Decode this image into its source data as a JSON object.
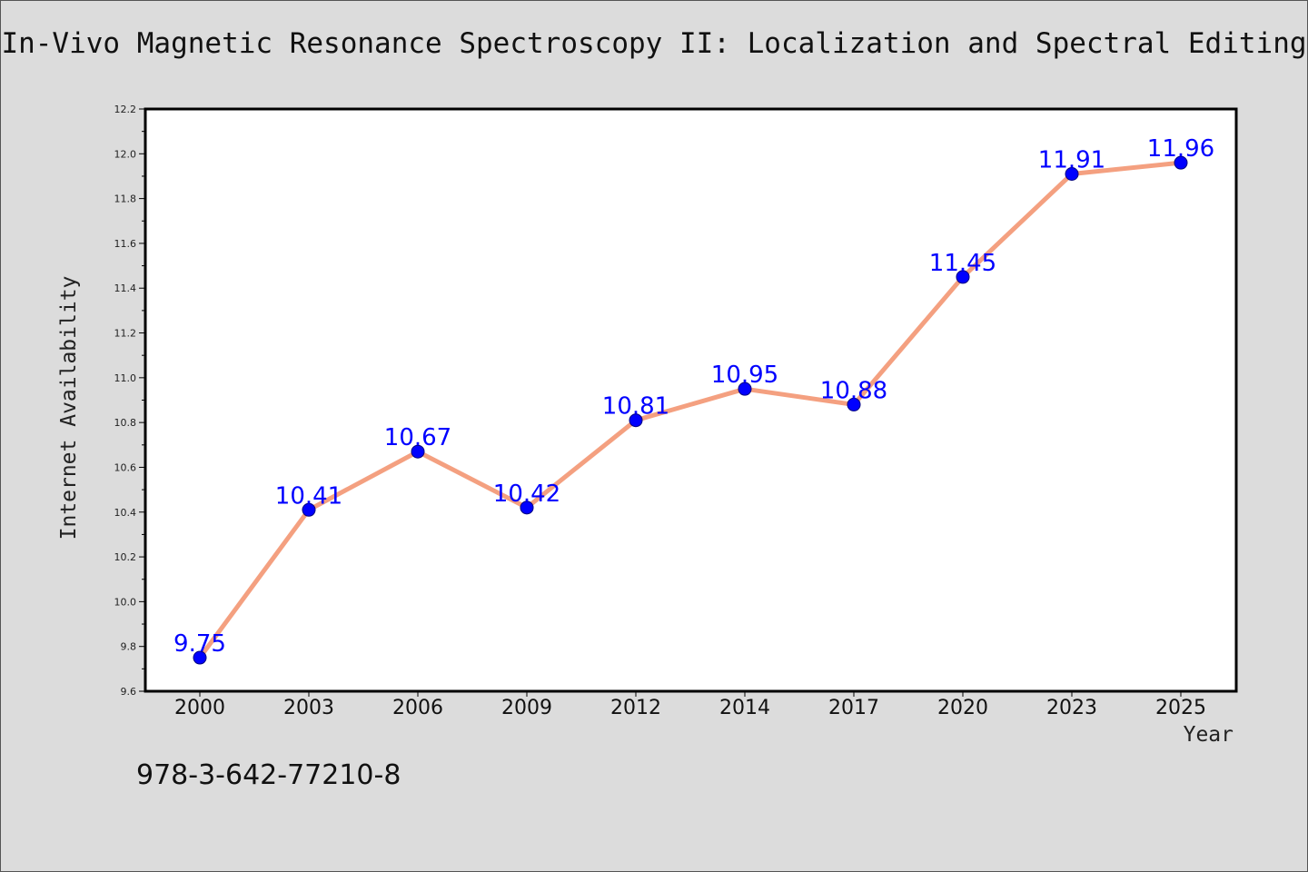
{
  "colors": {
    "line": "#f4a080",
    "marker": "#0000ff",
    "label": "#0000ff",
    "plot_bg": "#ffffff",
    "axis": "#000000"
  },
  "footer": "978-3-642-77210-8",
  "chart_data": {
    "type": "line",
    "title": "In-Vivo Magnetic Resonance Spectroscopy II: Localization and Spectral Editing",
    "xlabel": "Year",
    "ylabel": "Internet Availability",
    "categories": [
      "2000",
      "2003",
      "2006",
      "2009",
      "2012",
      "2014",
      "2017",
      "2020",
      "2023",
      "2025"
    ],
    "series": [
      {
        "values": [
          9.75,
          10.41,
          10.67,
          10.42,
          10.81,
          10.95,
          10.88,
          11.45,
          11.91,
          11.96
        ],
        "labels": [
          "9.75",
          "10.41",
          "10.67",
          "10.42",
          "10.81",
          "10.95",
          "10.88",
          "11.45",
          "11.91",
          "11.96"
        ]
      }
    ],
    "ylim": [
      9.6,
      12.2
    ],
    "yticks": [
      "9.6",
      "9.8",
      "10.0",
      "10.2",
      "10.4",
      "10.6",
      "10.8",
      "11.0",
      "11.2",
      "11.4",
      "11.6",
      "11.8",
      "12.0",
      "12.2"
    ],
    "grid": false,
    "legend": "none"
  }
}
